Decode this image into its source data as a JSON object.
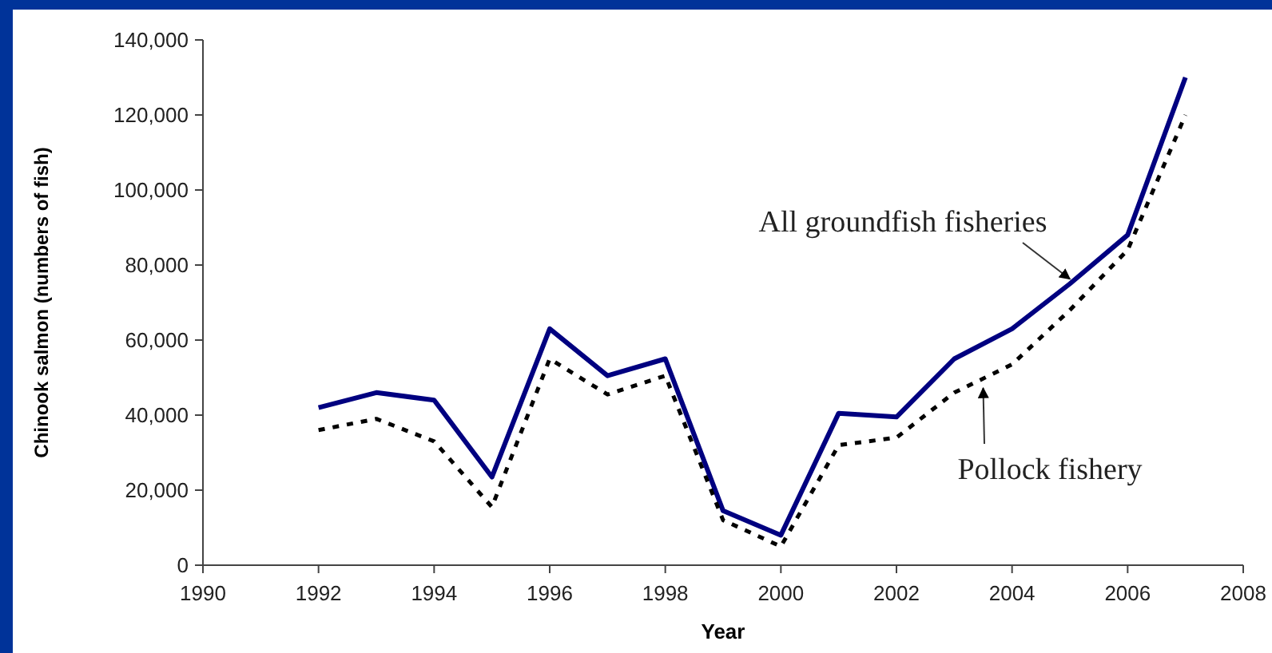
{
  "chart_data": {
    "type": "line",
    "xlabel": "Year",
    "ylabel": "Chinook salmon (numbers of fish)",
    "x": [
      1992,
      1993,
      1994,
      1995,
      1996,
      1997,
      1998,
      1999,
      2000,
      2001,
      2002,
      2003,
      2004,
      2005,
      2006,
      2007
    ],
    "series": [
      {
        "name": "All groundfish fisheries",
        "color": "#000080",
        "line_style": "solid",
        "values": [
          42000,
          46000,
          44000,
          23500,
          63000,
          50500,
          55000,
          14500,
          8000,
          40500,
          39500,
          55000,
          63000,
          75000,
          88000,
          130000
        ]
      },
      {
        "name": "Pollock fishery",
        "color": "#000000",
        "line_style": "dotted",
        "values": [
          36000,
          39000,
          33000,
          15500,
          55000,
          45500,
          50500,
          12000,
          5000,
          32000,
          34000,
          46000,
          53500,
          68000,
          84000,
          120000
        ]
      }
    ],
    "xlim": [
      1990,
      2008
    ],
    "xticks": [
      1990,
      1992,
      1994,
      1996,
      1998,
      2000,
      2002,
      2004,
      2006,
      2008
    ],
    "ylim": [
      0,
      140000
    ],
    "yticks": [
      {
        "value": 0,
        "label": "0"
      },
      {
        "value": 20000,
        "label": "20,000"
      },
      {
        "value": 40000,
        "label": "40,000"
      },
      {
        "value": 60000,
        "label": "60,000"
      },
      {
        "value": 80000,
        "label": "80,000"
      },
      {
        "value": 100000,
        "label": "100,000"
      },
      {
        "value": 120000,
        "label": "120,000"
      },
      {
        "value": 140000,
        "label": "140,000"
      }
    ],
    "grid": false,
    "marker": "none"
  }
}
